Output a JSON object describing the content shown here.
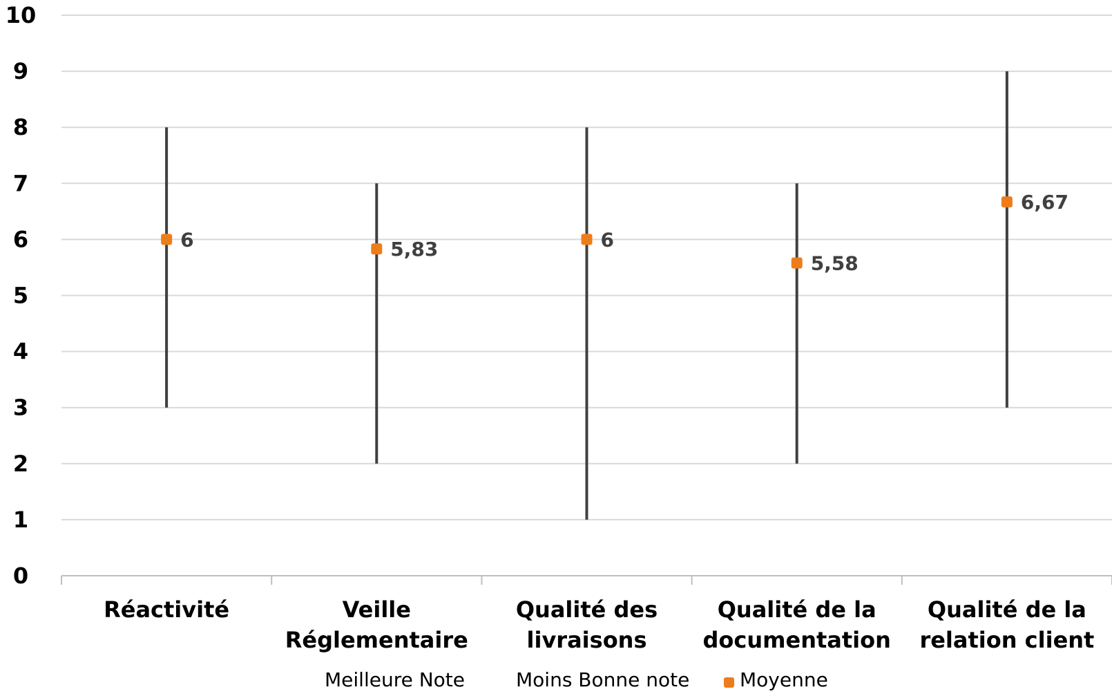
{
  "chart_data": {
    "type": "stock-hi-lo",
    "categories": [
      [
        "Réactivité"
      ],
      [
        "Veille",
        "Réglementaire"
      ],
      [
        "Qualité des",
        "livraisons"
      ],
      [
        "Qualité de la",
        "documentation"
      ],
      [
        "Qualité de la",
        "relation client"
      ]
    ],
    "series": [
      {
        "name": "Meilleure Note",
        "values": [
          8,
          7,
          8,
          7,
          9
        ]
      },
      {
        "name": "Moins Bonne note",
        "values": [
          3,
          2,
          1,
          2,
          3
        ]
      },
      {
        "name": "Moyenne",
        "values": [
          6,
          5.83,
          6,
          5.58,
          6.67
        ]
      }
    ],
    "data_labels": [
      "6",
      "5,83",
      "6",
      "5,58",
      "6,67"
    ],
    "ylim": [
      0,
      10
    ],
    "yticks": [
      "0",
      "1",
      "2",
      "3",
      "4",
      "5",
      "6",
      "7",
      "8",
      "9",
      "10"
    ],
    "grid": true,
    "legend_position": "bottom",
    "colors": {
      "marker": "#ED7D1B",
      "hilo_line": "#404040",
      "grid": "#D9D9D9",
      "axis": "#BFBFBF"
    }
  }
}
